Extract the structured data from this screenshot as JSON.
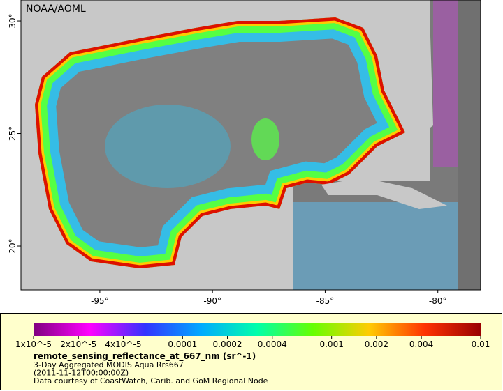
{
  "map": {
    "title": "NOAA/AOML",
    "xlim": [
      -98.5,
      -78.1
    ],
    "ylim": [
      18.05,
      30.93
    ],
    "xticks": [
      {
        "value": -95,
        "label": "-95°"
      },
      {
        "value": -90,
        "label": "-90°"
      },
      {
        "value": -85,
        "label": "-85°"
      },
      {
        "value": -80,
        "label": "-80°"
      }
    ],
    "yticks": [
      {
        "value": 20,
        "label": "20°"
      },
      {
        "value": 25,
        "label": "25°"
      },
      {
        "value": 30,
        "label": "30°"
      }
    ],
    "colorbar": {
      "scale": "log",
      "lim": [
        1e-05,
        0.01
      ],
      "colors": [
        "#7f007f",
        "#ff00ff",
        "#3333ff",
        "#00aaff",
        "#00ffaa",
        "#66ff00",
        "#ffcc00",
        "#ff3300",
        "#990000"
      ],
      "ticks": [
        {
          "value": 1e-05,
          "label": "1x10^-5"
        },
        {
          "value": 2e-05,
          "label": "2x10^-5"
        },
        {
          "value": 4e-05,
          "label": "4x10^-5"
        },
        0.0001,
        0.0002,
        0.0004,
        0.001,
        0.002,
        0.004,
        0.01
      ]
    },
    "legend": {
      "variable": "remote_sensing_reflectance_at_667_nm (sr^-1)",
      "lines": [
        "3-Day Aggregated MODIS Aqua Rrs667",
        "(2011-11-12T00:00:00Z)",
        "Data courtesy of CoastWatch, Carib. and GoM Regional Node"
      ]
    }
  }
}
